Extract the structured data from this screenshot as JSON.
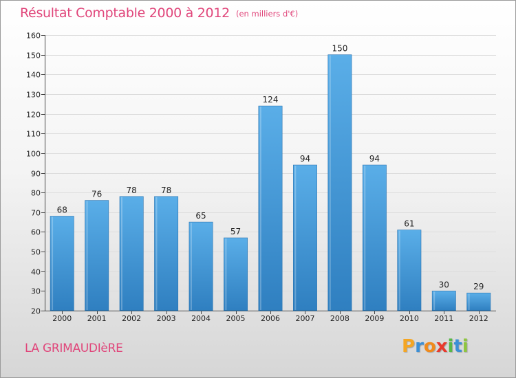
{
  "header": {
    "title": "Résultat Comptable 2000 à 2012",
    "subtitle": "(en milliers d'€)"
  },
  "footer": {
    "commune": "LA GRIMAUDIèRE",
    "logo": {
      "letters": [
        "P",
        "r",
        "o",
        "x",
        "i",
        "t",
        "i"
      ],
      "colors": [
        "#f5a623",
        "#3b8fd6",
        "#f08a1c",
        "#e8392c",
        "#57b847",
        "#3b8fd6",
        "#8ec63f"
      ]
    }
  },
  "chart_data": {
    "type": "bar",
    "title": "Résultat Comptable 2000 à 2012",
    "subtitle": "(en milliers d'€)",
    "xlabel": "",
    "ylabel": "",
    "categories": [
      "2000",
      "2001",
      "2002",
      "2003",
      "2004",
      "2005",
      "2006",
      "2007",
      "2008",
      "2009",
      "2010",
      "2011",
      "2012"
    ],
    "values": [
      68,
      76,
      78,
      78,
      65,
      57,
      124,
      94,
      150,
      94,
      61,
      30,
      29
    ],
    "ylim": [
      20,
      160
    ],
    "yticks": [
      20,
      30,
      40,
      50,
      60,
      70,
      80,
      90,
      100,
      110,
      120,
      130,
      140,
      150,
      160
    ],
    "grid": true,
    "bar_color": "#4f9fdd"
  }
}
